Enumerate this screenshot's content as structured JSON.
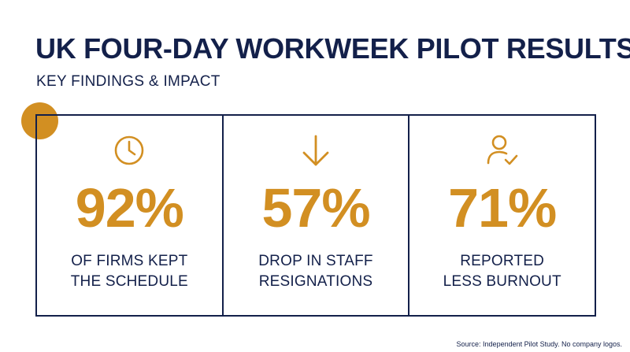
{
  "header": {
    "title": "UK FOUR-DAY WORKWEEK PILOT RESULTS",
    "subtitle": "KEY FINDINGS & IMPACT"
  },
  "colors": {
    "navy": "#13204a",
    "accent": "#d28f22",
    "background": "#ffffff"
  },
  "stats": [
    {
      "icon": "clock-icon",
      "value": "92%",
      "label_line1": "OF FIRMS KEPT",
      "label_line2": "THE SCHEDULE"
    },
    {
      "icon": "arrow-down-icon",
      "value": "57%",
      "label_line1": "DROP IN STAFF",
      "label_line2": "RESIGNATIONS"
    },
    {
      "icon": "user-check-icon",
      "value": "71%",
      "label_line1": "REPORTED",
      "label_line2": "LESS BURNOUT"
    }
  ],
  "footer": {
    "source": "Source: Independent Pilot Study. No company logos."
  }
}
